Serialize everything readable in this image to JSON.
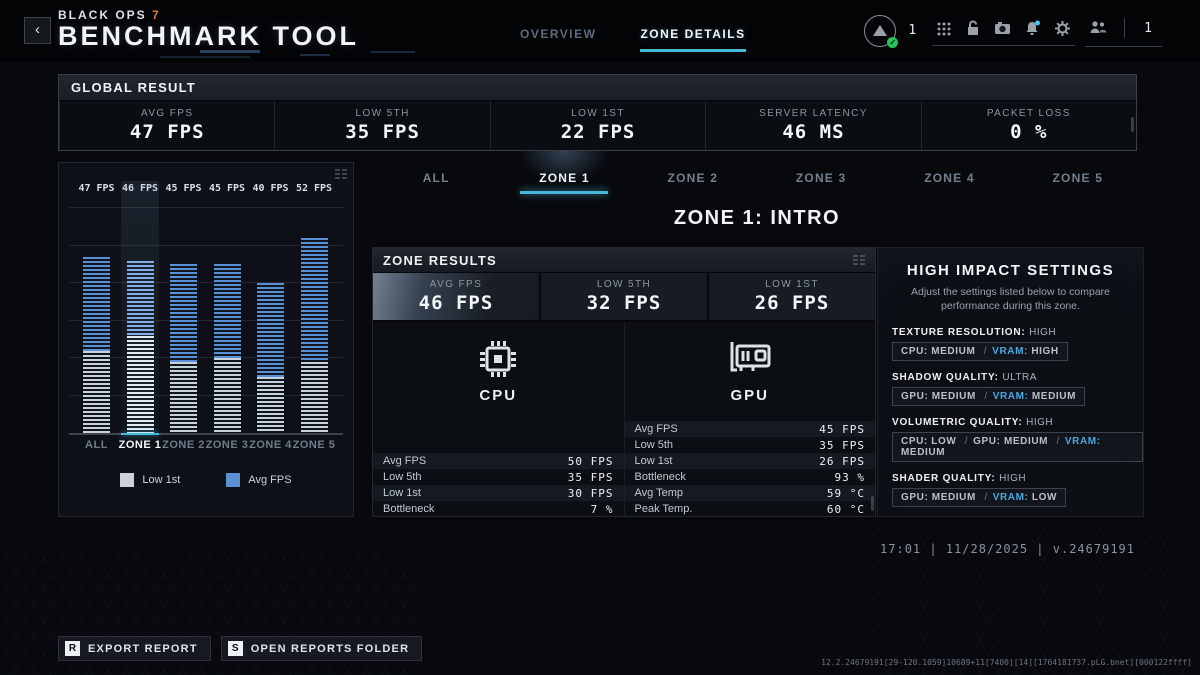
{
  "header": {
    "back_label": "‹",
    "logo_top": "BLACK OPS ",
    "logo_seven": "7",
    "logo_main": "BENCHMARK TOOL",
    "tabs": [
      {
        "label": "OVERVIEW",
        "active": false
      },
      {
        "label": "ZONE DETAILS",
        "active": true
      }
    ],
    "profile_count": "1",
    "party_count": "1",
    "icons": [
      "apps-grid-icon",
      "unlocked-padlock-icon",
      "capture-icon",
      "notifications-bell-icon",
      "settings-gear-icon"
    ],
    "social_icon": "party-group-icon",
    "accent_colors": {
      "tab_underline": "#49b8d8",
      "notification_dot": "#41c8e8",
      "online_badge": "#27c25a",
      "logo_seven": "#e07b28"
    }
  },
  "global_result": {
    "title": "GLOBAL RESULT",
    "stats": [
      {
        "label": "AVG FPS",
        "value": "47 FPS"
      },
      {
        "label": "LOW 5TH",
        "value": "35 FPS"
      },
      {
        "label": "LOW 1ST",
        "value": "22 FPS"
      },
      {
        "label": "SERVER LATENCY",
        "value": "46 MS"
      },
      {
        "label": "PACKET LOSS",
        "value": "0 %"
      }
    ]
  },
  "chart_data": {
    "type": "bar",
    "stacked": true,
    "categories": [
      "ALL",
      "ZONE 1",
      "ZONE 2",
      "ZONE 3",
      "ZONE 4",
      "ZONE 5"
    ],
    "series": [
      {
        "name": "Low 1st",
        "values": [
          22,
          26,
          19,
          20,
          15,
          19
        ],
        "color": "#c9d2db"
      },
      {
        "name": "Avg FPS",
        "values": [
          47,
          46,
          45,
          45,
          40,
          52
        ],
        "color": "#5b8fd4"
      }
    ],
    "bar_labels": [
      "47 FPS",
      "46 FPS",
      "45 FPS",
      "45 FPS",
      "40 FPS",
      "52 FPS"
    ],
    "selected_category": "ZONE 1",
    "ylim": [
      0,
      60
    ],
    "grid_step": 10,
    "legend_position": "bottom",
    "note": "bars show Low 1st segment (bottom) up to low-1st value, Avg FPS segment above it up to avg value"
  },
  "zone_tabs": {
    "items": [
      "ALL",
      "ZONE 1",
      "ZONE 2",
      "ZONE 3",
      "ZONE 4",
      "ZONE 5"
    ],
    "active_index": 1
  },
  "zone_title": "ZONE 1: INTRO",
  "zone_results": {
    "title": "ZONE RESULTS",
    "stats": [
      {
        "label": "AVG FPS",
        "value": "46 FPS"
      },
      {
        "label": "LOW 5TH",
        "value": "32 FPS"
      },
      {
        "label": "LOW 1ST",
        "value": "26 FPS"
      }
    ],
    "cpu": {
      "label": "CPU",
      "rows": [
        {
          "label": "Avg FPS",
          "value": "50 FPS"
        },
        {
          "label": "Low 5th",
          "value": "35 FPS"
        },
        {
          "label": "Low 1st",
          "value": "30 FPS"
        },
        {
          "label": "Bottleneck",
          "value": "7 %"
        }
      ]
    },
    "gpu": {
      "label": "GPU",
      "rows": [
        {
          "label": "Avg FPS",
          "value": "45 FPS"
        },
        {
          "label": "Low 5th",
          "value": "35 FPS"
        },
        {
          "label": "Low 1st",
          "value": "26 FPS"
        },
        {
          "label": "Bottleneck",
          "value": "93 %"
        },
        {
          "label": "Avg Temp",
          "value": "59 °C"
        },
        {
          "label": "Peak Temp.",
          "value": "60 °C"
        }
      ]
    }
  },
  "settings_panel": {
    "title": "HIGH IMPACT SETTINGS",
    "description": "Adjust the settings listed below to compare performance during this zone.",
    "groups": [
      {
        "name": "TEXTURE RESOLUTION:",
        "value": "HIGH",
        "parts": [
          {
            "key": "CPU:",
            "val": "MEDIUM",
            "accent": false
          },
          {
            "key": "VRAM:",
            "val": "HIGH",
            "accent": true
          }
        ]
      },
      {
        "name": "SHADOW QUALITY:",
        "value": "ULTRA",
        "parts": [
          {
            "key": "GPU:",
            "val": "MEDIUM",
            "accent": false
          },
          {
            "key": "VRAM:",
            "val": "MEDIUM",
            "accent": true
          }
        ]
      },
      {
        "name": "VOLUMETRIC QUALITY:",
        "value": "HIGH",
        "parts": [
          {
            "key": "CPU:",
            "val": "LOW",
            "accent": false
          },
          {
            "key": "GPU:",
            "val": "MEDIUM",
            "accent": false
          },
          {
            "key": "VRAM:",
            "val": "MEDIUM",
            "accent": true
          }
        ]
      },
      {
        "name": "SHADER QUALITY:",
        "value": "HIGH",
        "parts": [
          {
            "key": "GPU:",
            "val": "MEDIUM",
            "accent": false
          },
          {
            "key": "VRAM:",
            "val": "LOW",
            "accent": true
          }
        ]
      }
    ]
  },
  "footer": {
    "timestamp": "17:01 | 11/28/2025 | v.24679191",
    "buttons": [
      {
        "key": "R",
        "label": "EXPORT REPORT"
      },
      {
        "key": "S",
        "label": "OPEN REPORTS FOLDER"
      }
    ],
    "debug": "12.2.24679191[29-120.1059]10689+11[7400][14][1764181737.pLG.bnet][000122ffff]"
  }
}
